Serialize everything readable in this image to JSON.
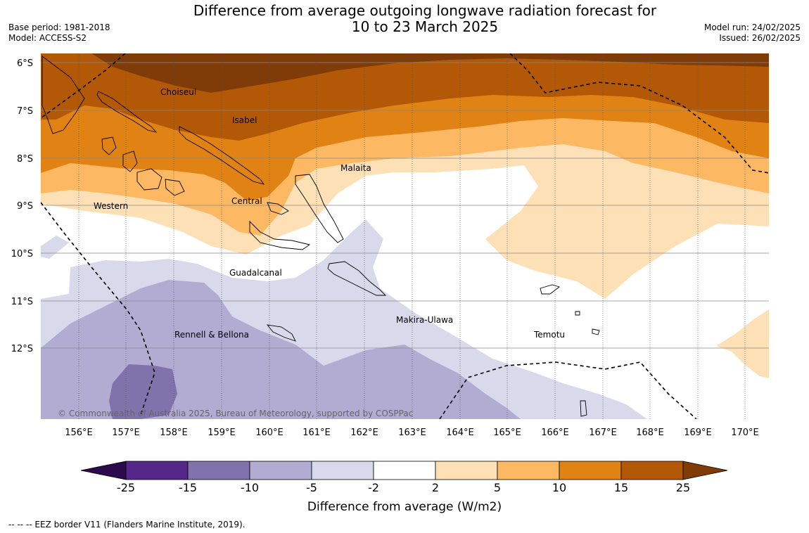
{
  "title": {
    "line1": "Difference from average outgoing longwave radiation forecast for",
    "line2": "10 to 23 March 2025"
  },
  "meta_left": {
    "base_period": "Base period: 1981-2018",
    "model": "Model: ACCESS-S2"
  },
  "meta_right": {
    "model_run": "Model run: 24/02/2025",
    "issued": "Issued: 26/02/2025"
  },
  "map": {
    "lon_ticks": [
      "156°E",
      "157°E",
      "158°E",
      "159°E",
      "160°E",
      "161°E",
      "162°E",
      "163°E",
      "164°E",
      "165°E",
      "166°E",
      "167°E",
      "168°E",
      "169°E",
      "170°E"
    ],
    "lat_ticks": [
      "6°S",
      "7°S",
      "8°S",
      "9°S",
      "10°S",
      "11°S",
      "12°S"
    ],
    "regions": [
      "Choiseul",
      "Isabel",
      "Malaita",
      "Western",
      "Central",
      "Guadalcanal",
      "Makira-Ulawa",
      "Rennell & Bellona",
      "Temotu"
    ],
    "copyright": "© Commonwealth of Australia 2025, Bureau of Meteorology, supported by COSPPac"
  },
  "colorbar": {
    "labels": [
      "-25",
      "-15",
      "-10",
      "-5",
      "-2",
      "2",
      "5",
      "10",
      "15",
      "25"
    ],
    "colors": [
      "#2d0a4e",
      "#542788",
      "#8073ac",
      "#b2abd2",
      "#d8daeb",
      "#ffffff",
      "#fee0b6",
      "#fdb863",
      "#e08214",
      "#b35806",
      "#7f3b08"
    ],
    "title": "Difference from average (W/m2)"
  },
  "legend_note": "-- -- -- EEZ border V11 (Flanders Marine Institute, 2019)."
}
